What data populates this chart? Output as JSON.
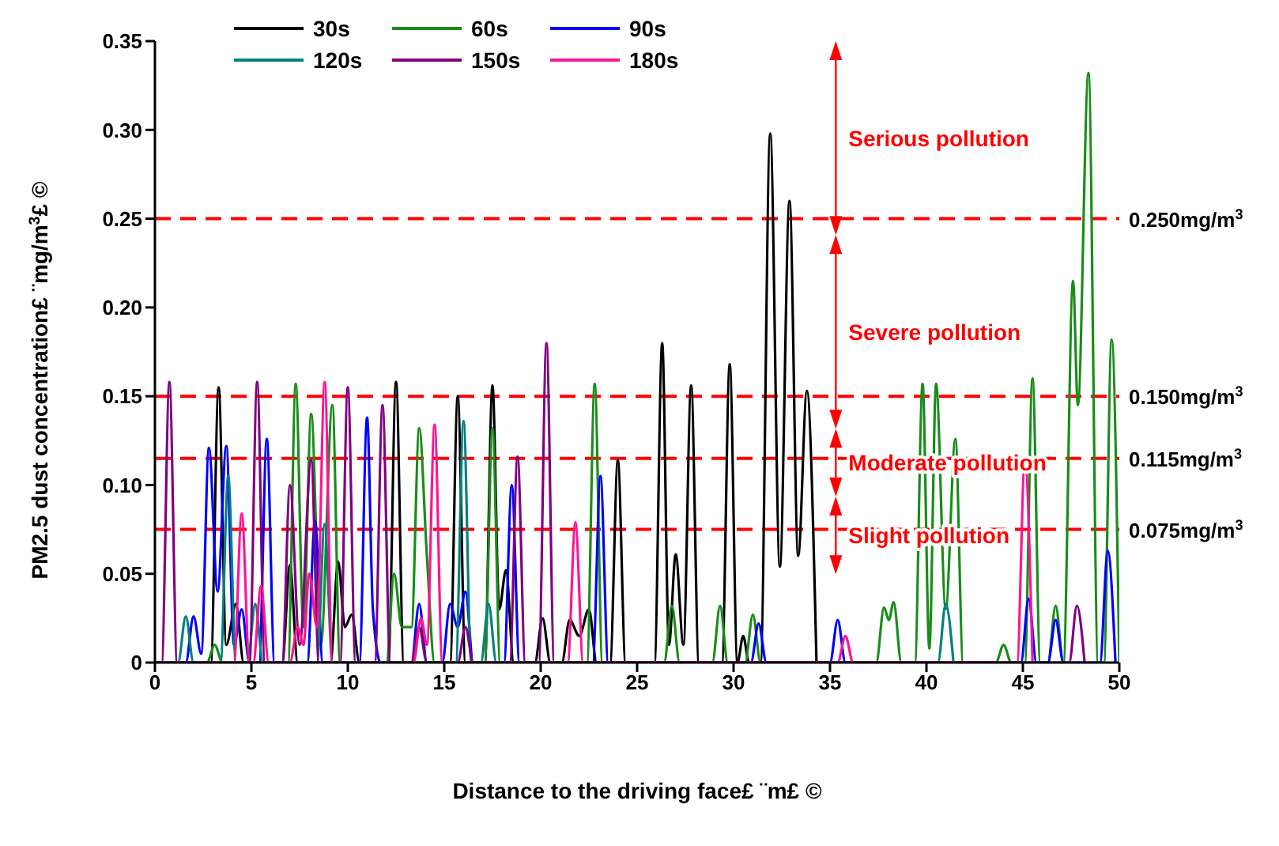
{
  "chart_data": {
    "type": "line",
    "xlabel": "Distance to the driving face£ ¨m£  ©",
    "ylabel": "PM2.5 dust concentration£ ¨mg/m$^{3}$£  ©",
    "xlim": [
      0,
      50
    ],
    "xticks": [
      0,
      5,
      10,
      15,
      20,
      25,
      30,
      35,
      40,
      45,
      50
    ],
    "ylim": [
      0,
      0.35
    ],
    "yticks": [
      0,
      0.05,
      {
        "value": 0.1,
        "label": "0.10"
      },
      0.15,
      {
        "value": 0.2,
        "label": "0.20"
      },
      0.25,
      {
        "value": 0.3,
        "label": "0.30"
      },
      0.35
    ],
    "grid": false,
    "legend": "top",
    "marker": "none",
    "line_style": "solid",
    "series": [
      {
        "name": "30s",
        "color": "#000000",
        "x": [
          0,
          2.9,
          3.3,
          3.7,
          4.2,
          4.6,
          6.6,
          7.0,
          7.4,
          9.1,
          9.5,
          9.85,
          10.2,
          10.6,
          12.1,
          12.5,
          12.9,
          15.3,
          15.7,
          16.1,
          17.1,
          17.5,
          17.85,
          18.2,
          18.6,
          19.7,
          20.1,
          20.5,
          21.1,
          21.5,
          22.0,
          22.5,
          22.9,
          23.6,
          24.0,
          24.4,
          25.9,
          26.3,
          26.65,
          27.0,
          27.4,
          27.8,
          28.2,
          29.4,
          29.8,
          30.2,
          30.5,
          30.8,
          31.4,
          31.9,
          32.4,
          32.9,
          33.35,
          33.8,
          34.3
        ],
        "values": [
          0,
          0,
          0.155,
          0.01,
          0.033,
          0,
          0,
          0.055,
          0,
          0,
          0.057,
          0.02,
          0.027,
          0,
          0,
          0.158,
          0,
          0,
          0.15,
          0,
          0,
          0.156,
          0.03,
          0.052,
          0,
          0,
          0.025,
          0,
          0,
          0.024,
          0.015,
          0.03,
          0,
          0,
          0.114,
          0,
          0,
          0.18,
          0.01,
          0.061,
          0.01,
          0.156,
          0,
          0,
          0.168,
          0,
          0.015,
          0,
          0,
          0.298,
          0.054,
          0.26,
          0.06,
          0.153,
          0
        ]
      },
      {
        "name": "60s",
        "color": "#1a8c1a",
        "x": [
          0,
          2.7,
          3.1,
          3.5,
          6.9,
          7.3,
          7.7,
          8.1,
          8.6,
          9.2,
          9.6,
          12.0,
          12.4,
          12.8,
          13.3,
          13.7,
          14.1,
          14.5,
          17.1,
          17.5,
          17.9,
          22.4,
          22.8,
          23.2,
          26.4,
          26.8,
          27.2,
          28.9,
          29.3,
          29.7,
          30.6,
          31.0,
          31.4,
          37.4,
          37.8,
          38.05,
          38.3,
          38.7,
          39.4,
          39.8,
          40.15,
          40.5,
          41.0,
          41.5,
          41.9,
          43.6,
          44.0,
          44.4,
          45.1,
          45.5,
          45.9,
          46.3,
          46.7,
          47.1,
          47.6,
          47.85,
          48.4,
          48.9,
          49.2,
          49.6,
          50
        ],
        "values": [
          0,
          0,
          0.01,
          0,
          0,
          0.157,
          0.02,
          0.14,
          0.01,
          0.145,
          0,
          0,
          0.05,
          0.02,
          0.02,
          0.132,
          0.06,
          0,
          0,
          0.132,
          0,
          0,
          0.157,
          0,
          0,
          0.032,
          0,
          0,
          0.032,
          0,
          0,
          0.027,
          0,
          0,
          0.031,
          0.024,
          0.034,
          0,
          0,
          0.157,
          0.008,
          0.157,
          0.03,
          0.126,
          0,
          0,
          0.01,
          0,
          0,
          0.16,
          0,
          0,
          0.032,
          0,
          0.215,
          0.145,
          0.332,
          0,
          0,
          0.182,
          0
        ]
      },
      {
        "name": "90s",
        "color": "#0000ff",
        "x": [
          0,
          1.6,
          2.0,
          2.4,
          2.8,
          3.25,
          3.7,
          4.1,
          4.5,
          4.9,
          5.4,
          5.8,
          6.2,
          7.9,
          8.3,
          8.7,
          10.6,
          11.0,
          11.3,
          11.7,
          13.3,
          13.7,
          14.1,
          14.9,
          15.3,
          15.7,
          16.1,
          16.5,
          18.1,
          18.5,
          18.9,
          22.7,
          23.1,
          23.5,
          30.9,
          31.3,
          31.7,
          35.0,
          35.4,
          35.8,
          44.9,
          45.3,
          45.7,
          46.3,
          46.7,
          47.1,
          49.0,
          49.4,
          49.8
        ],
        "values": [
          0,
          0,
          0.026,
          0.005,
          0.121,
          0.04,
          0.122,
          0.01,
          0.03,
          0,
          0,
          0.126,
          0,
          0,
          0.08,
          0,
          0,
          0.138,
          0.03,
          0,
          0,
          0.033,
          0,
          0,
          0.033,
          0.02,
          0.04,
          0,
          0,
          0.1,
          0,
          0,
          0.105,
          0,
          0,
          0.022,
          0,
          0,
          0.024,
          0,
          0,
          0.036,
          0,
          0,
          0.024,
          0,
          0,
          0.063,
          0
        ]
      },
      {
        "name": "120s",
        "color": "#008080",
        "x": [
          0,
          1.2,
          1.6,
          2.0,
          3.4,
          3.8,
          4.2,
          4.8,
          5.2,
          5.6,
          8.4,
          8.8,
          9.2,
          15.6,
          16.0,
          16.4,
          16.9,
          17.3,
          17.7,
          40.6,
          41.0,
          41.4
        ],
        "values": [
          0,
          0,
          0.026,
          0,
          0,
          0.105,
          0,
          0,
          0.033,
          0,
          0,
          0.078,
          0,
          0,
          0.136,
          0,
          0,
          0.033,
          0,
          0,
          0.033,
          0
        ]
      },
      {
        "name": "150s",
        "color": "#800080",
        "x": [
          0,
          0.35,
          0.75,
          1.15,
          4.9,
          5.3,
          5.7,
          6.6,
          7.0,
          7.5,
          8.1,
          8.5,
          9.6,
          10.0,
          10.4,
          11.4,
          11.8,
          12.2,
          13.3,
          13.7,
          14.1,
          15.7,
          16.1,
          16.5,
          18.4,
          18.8,
          19.2,
          19.9,
          20.3,
          20.7,
          47.4,
          47.8,
          48.2
        ],
        "values": [
          0,
          0,
          0.158,
          0,
          0,
          0.158,
          0,
          0,
          0.1,
          0.01,
          0.114,
          0,
          0,
          0.155,
          0,
          0,
          0.145,
          0,
          0,
          0.02,
          0,
          0,
          0.02,
          0,
          0,
          0.116,
          0,
          0,
          0.18,
          0,
          0,
          0.032,
          0
        ]
      },
      {
        "name": "180s",
        "color": "#ff1493",
        "x": [
          0,
          4.1,
          4.5,
          4.9,
          5.1,
          5.5,
          5.9,
          7.0,
          7.4,
          7.7,
          8.0,
          8.4,
          8.8,
          9.2,
          13.4,
          13.8,
          14.1,
          14.5,
          14.9,
          21.4,
          21.8,
          22.2,
          35.4,
          35.8,
          36.2,
          44.7,
          45.1,
          45.5
        ],
        "values": [
          0,
          0,
          0.084,
          0,
          0,
          0.043,
          0,
          0,
          0.02,
          0.01,
          0.05,
          0.02,
          0.158,
          0,
          0,
          0.025,
          0.01,
          0.134,
          0,
          0,
          0.079,
          0,
          0,
          0.015,
          0,
          0,
          0.114,
          0
        ]
      }
    ],
    "ref_lines": [
      {
        "axis": "y",
        "value": 0.25,
        "label": "0.250mg/m$^{3}$",
        "color": "#ff0000",
        "line_style": "dashed"
      },
      {
        "axis": "y",
        "value": 0.15,
        "label": "0.150mg/m$^{3}$",
        "color": "#ff0000",
        "line_style": "dashed"
      },
      {
        "axis": "y",
        "value": 0.115,
        "label": "0.115mg/m$^{3}$",
        "color": "#ff0000",
        "line_style": "dashed"
      },
      {
        "axis": "y",
        "value": 0.075,
        "label": "0.075mg/m$^{3}$",
        "color": "#ff0000",
        "line_style": "dashed"
      }
    ],
    "annotations": [
      "Serious pollution",
      "Severe pollution",
      "Moderate pollution",
      "Slight pollution"
    ]
  }
}
